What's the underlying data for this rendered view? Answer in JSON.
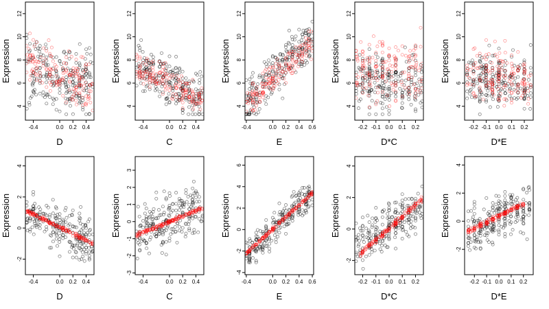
{
  "figure": {
    "colors": {
      "observed": "#000000",
      "fitted": "#ff0000",
      "frame": "#000000",
      "background": "#ffffff"
    }
  },
  "chart_data": [
    {
      "type": "scatter",
      "xlabel": "D",
      "ylabel": "Expression",
      "xticks": [
        -0.4,
        0.0,
        0.2,
        0.4
      ],
      "xtick_labels": [
        "-0.4",
        "0.0",
        "0.2",
        "0.4"
      ],
      "yticks": [
        4,
        6,
        8,
        10,
        12
      ],
      "ytick_labels": [
        "4",
        "6",
        "8",
        "10",
        "12"
      ],
      "xlim": [
        -0.52,
        0.52
      ],
      "ylim": [
        2.8,
        13.0
      ],
      "grid": false,
      "series": [
        {
          "role": "observed",
          "x_range": [
            -0.5,
            0.5
          ],
          "trend": [
            [
              -0.5,
              7.0
            ],
            [
              0.5,
              6.0
            ]
          ],
          "spread": 2.0
        },
        {
          "role": "fitted",
          "x_range": [
            -0.5,
            0.5
          ],
          "trend": [
            [
              -0.5,
              8.0
            ],
            [
              0.5,
              5.5
            ]
          ],
          "spread": 1.6
        }
      ]
    },
    {
      "type": "scatter",
      "xlabel": "C",
      "ylabel": "Expression",
      "xticks": [
        -0.4,
        0.0,
        0.2,
        0.4
      ],
      "xtick_labels": [
        "-0.4",
        "0.0",
        "0.2",
        "0.4"
      ],
      "yticks": [
        4,
        6,
        8,
        10,
        12
      ],
      "ytick_labels": [
        "4",
        "6",
        "8",
        "10",
        "12"
      ],
      "xlim": [
        -0.52,
        0.52
      ],
      "ylim": [
        2.8,
        13.0
      ],
      "grid": false,
      "series": [
        {
          "role": "observed",
          "x_range": [
            -0.5,
            0.5
          ],
          "trend": [
            [
              -0.5,
              7.5
            ],
            [
              0.5,
              4.5
            ]
          ],
          "spread": 1.5
        },
        {
          "role": "fitted",
          "x_range": [
            -0.5,
            0.5
          ],
          "trend": [
            [
              -0.5,
              7.5
            ],
            [
              0.5,
              4.5
            ]
          ],
          "spread": 0.9
        }
      ]
    },
    {
      "type": "scatter",
      "xlabel": "E",
      "ylabel": "Expression",
      "xticks": [
        -0.4,
        0.0,
        0.2,
        0.4,
        0.6
      ],
      "xtick_labels": [
        "-0.4",
        "0.0",
        "0.2",
        "0.4",
        "0.6"
      ],
      "yticks": [
        4,
        6,
        8,
        10,
        12
      ],
      "ytick_labels": [
        "4",
        "6",
        "8",
        "10",
        "12"
      ],
      "xlim": [
        -0.42,
        0.62
      ],
      "ylim": [
        2.8,
        13.0
      ],
      "grid": false,
      "series": [
        {
          "role": "observed",
          "x_range": [
            -0.4,
            0.6
          ],
          "trend": [
            [
              -0.4,
              4.3
            ],
            [
              0.6,
              10.0
            ]
          ],
          "spread": 1.5
        },
        {
          "role": "fitted",
          "x_range": [
            -0.4,
            0.6
          ],
          "trend": [
            [
              -0.4,
              4.5
            ],
            [
              0.6,
              9.5
            ]
          ],
          "spread": 0.9
        }
      ]
    },
    {
      "type": "scatter",
      "xlabel": "D*C",
      "ylabel": "Expression",
      "xticks": [
        -0.2,
        -0.1,
        0.0,
        0.1,
        0.2
      ],
      "xtick_labels": [
        "-0.2",
        "-0.1",
        "0.0",
        "0.1",
        "0.2"
      ],
      "yticks": [
        4,
        6,
        8,
        10,
        12
      ],
      "ytick_labels": [
        "4",
        "6",
        "8",
        "10",
        "12"
      ],
      "xlim": [
        -0.26,
        0.26
      ],
      "ylim": [
        2.8,
        13.0
      ],
      "grid": false,
      "series": [
        {
          "role": "observed",
          "x_range": [
            -0.25,
            0.25
          ],
          "trend": [
            [
              -0.25,
              6.0
            ],
            [
              0.25,
              6.0
            ]
          ],
          "spread": 1.8
        },
        {
          "role": "fitted",
          "x_range": [
            -0.25,
            0.25
          ],
          "trend": [
            [
              -0.25,
              7.0
            ],
            [
              0.25,
              7.0
            ]
          ],
          "spread": 2.0
        }
      ]
    },
    {
      "type": "scatter",
      "xlabel": "D*E",
      "ylabel": "Expression",
      "xticks": [
        -0.2,
        -0.1,
        0.0,
        0.1,
        0.2
      ],
      "xtick_labels": [
        "-0.2",
        "-0.1",
        "0.0",
        "0.1",
        "0.2"
      ],
      "yticks": [
        4,
        6,
        8,
        10,
        12
      ],
      "ytick_labels": [
        "4",
        "6",
        "8",
        "10",
        "12"
      ],
      "xlim": [
        -0.27,
        0.27
      ],
      "ylim": [
        2.8,
        13.0
      ],
      "grid": false,
      "series": [
        {
          "role": "observed",
          "x_range": [
            -0.25,
            0.25
          ],
          "trend": [
            [
              -0.25,
              6.5
            ],
            [
              0.25,
              6.0
            ]
          ],
          "spread": 1.8
        },
        {
          "role": "fitted",
          "x_range": [
            -0.25,
            0.25
          ],
          "trend": [
            [
              -0.25,
              7.0
            ],
            [
              0.25,
              6.5
            ]
          ],
          "spread": 2.0
        }
      ]
    },
    {
      "type": "scatter",
      "xlabel": "D",
      "ylabel": "Expression",
      "xticks": [
        -0.4,
        0.0,
        0.2,
        0.4
      ],
      "xtick_labels": [
        "-0.4",
        "0.0",
        "0.2",
        "0.4"
      ],
      "yticks": [
        -2,
        0,
        2,
        4
      ],
      "ytick_labels": [
        "-2",
        "0",
        "2",
        "4"
      ],
      "xlim": [
        -0.52,
        0.52
      ],
      "ylim": [
        -3.0,
        4.6
      ],
      "grid": false,
      "series": [
        {
          "role": "observed",
          "x_range": [
            -0.5,
            0.5
          ],
          "trend": [
            [
              -0.5,
              1.0
            ],
            [
              0.5,
              -1.0
            ]
          ],
          "spread": 1.0
        },
        {
          "role": "fitted",
          "x_range": [
            -0.5,
            0.5
          ],
          "trend": [
            [
              -0.5,
              1.1
            ],
            [
              0.5,
              -1.0
            ]
          ],
          "spread": 0.08
        }
      ]
    },
    {
      "type": "scatter",
      "xlabel": "C",
      "ylabel": "Expression",
      "xticks": [
        -0.4,
        0.0,
        0.2,
        0.4
      ],
      "xtick_labels": [
        "-0.4",
        "0.0",
        "0.2",
        "0.4"
      ],
      "yticks": [
        -3,
        -2,
        -1,
        0,
        1,
        2,
        3
      ],
      "ytick_labels": [
        "-3",
        "-2",
        "-1",
        "0",
        "1",
        "2",
        "3"
      ],
      "xlim": [
        -0.52,
        0.52
      ],
      "ylim": [
        -3.1,
        3.8
      ],
      "grid": false,
      "series": [
        {
          "role": "observed",
          "x_range": [
            -0.5,
            0.5
          ],
          "trend": [
            [
              -0.5,
              -0.6
            ],
            [
              0.5,
              0.8
            ]
          ],
          "spread": 1.1
        },
        {
          "role": "fitted",
          "x_range": [
            -0.5,
            0.5
          ],
          "trend": [
            [
              -0.5,
              -0.8
            ],
            [
              0.5,
              0.8
            ]
          ],
          "spread": 0.08
        }
      ]
    },
    {
      "type": "scatter",
      "xlabel": "E",
      "ylabel": "Expression",
      "xticks": [
        -0.4,
        0.0,
        0.2,
        0.4,
        0.6
      ],
      "xtick_labels": [
        "-0.4",
        "0.0",
        "0.2",
        "0.4",
        "0.6"
      ],
      "yticks": [
        -4,
        -2,
        0,
        2,
        4,
        6
      ],
      "ytick_labels": [
        "-4",
        "-2",
        "0",
        "2",
        "4",
        "6"
      ],
      "xlim": [
        -0.42,
        0.62
      ],
      "ylim": [
        -4.2,
        6.8
      ],
      "grid": false,
      "series": [
        {
          "role": "observed",
          "x_range": [
            -0.4,
            0.6
          ],
          "trend": [
            [
              -0.4,
              -2.4
            ],
            [
              0.6,
              3.5
            ]
          ],
          "spread": 1.0
        },
        {
          "role": "fitted",
          "x_range": [
            -0.4,
            0.6
          ],
          "trend": [
            [
              -0.4,
              -2.2
            ],
            [
              0.6,
              3.4
            ]
          ],
          "spread": 0.1
        }
      ]
    },
    {
      "type": "scatter",
      "xlabel": "D*C",
      "ylabel": "Expression",
      "xticks": [
        -0.2,
        -0.1,
        0.0,
        0.1,
        0.2
      ],
      "xtick_labels": [
        "-0.2",
        "-0.1",
        "0.0",
        "0.1",
        "0.2"
      ],
      "yticks": [
        -2,
        0,
        2,
        4
      ],
      "ytick_labels": [
        "-2",
        "0",
        "2",
        "4"
      ],
      "xlim": [
        -0.26,
        0.26
      ],
      "ylim": [
        -2.9,
        4.6
      ],
      "grid": false,
      "series": [
        {
          "role": "observed",
          "x_range": [
            -0.25,
            0.25
          ],
          "trend": [
            [
              -0.25,
              -1.0
            ],
            [
              0.25,
              1.5
            ]
          ],
          "spread": 1.0
        },
        {
          "role": "fitted",
          "x_range": [
            -0.22,
            0.25
          ],
          "trend": [
            [
              -0.22,
              -1.6
            ],
            [
              0.25,
              1.9
            ]
          ],
          "spread": 0.12
        }
      ]
    },
    {
      "type": "scatter",
      "xlabel": "D*E",
      "ylabel": "Expression",
      "xticks": [
        -0.2,
        -0.1,
        0.0,
        0.1,
        0.2
      ],
      "xtick_labels": [
        "-0.2",
        "-0.1",
        "0.0",
        "0.1",
        "0.2"
      ],
      "yticks": [
        -2,
        0,
        2,
        4
      ],
      "ytick_labels": [
        "-2",
        "0",
        "2",
        "4"
      ],
      "xlim": [
        -0.28,
        0.28
      ],
      "ylim": [
        -3.8,
        4.6
      ],
      "grid": false,
      "series": [
        {
          "role": "observed",
          "x_range": [
            -0.25,
            0.25
          ],
          "trend": [
            [
              -0.25,
              -0.7
            ],
            [
              0.25,
              1.1
            ]
          ],
          "spread": 1.1
        },
        {
          "role": "fitted",
          "x_range": [
            -0.25,
            0.2
          ],
          "trend": [
            [
              -0.25,
              -0.7
            ],
            [
              0.2,
              1.2
            ]
          ],
          "spread": 0.12
        }
      ]
    }
  ]
}
